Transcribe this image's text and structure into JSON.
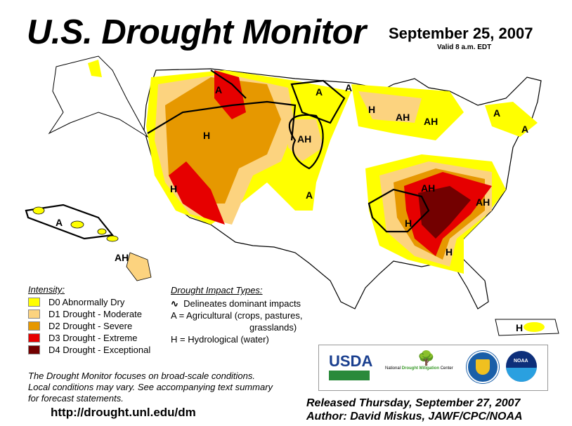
{
  "header": {
    "title": "U.S. Drought Monitor",
    "date": "September 25, 2007",
    "valid": "Valid 8 a.m. EDT"
  },
  "colors": {
    "D0": "#ffff00",
    "D1": "#fcd37f",
    "D2": "#e69800",
    "D3": "#e60000",
    "D4": "#730000"
  },
  "legend": {
    "intensity_title": "Intensity:",
    "items": [
      {
        "code": "D0",
        "label": "D0 Abnormally Dry",
        "color": "#ffff00"
      },
      {
        "code": "D1",
        "label": "D1 Drought - Moderate",
        "color": "#fcd37f"
      },
      {
        "code": "D2",
        "label": "D2 Drought - Severe",
        "color": "#e69800"
      },
      {
        "code": "D3",
        "label": "D3 Drought - Extreme",
        "color": "#e60000"
      },
      {
        "code": "D4",
        "label": "D4 Drought - Exceptional",
        "color": "#730000"
      }
    ],
    "impact_title": "Drought Impact Types:",
    "impact_line": "Delineates dominant impacts",
    "impact_a1": "A = Agricultural (crops, pastures,",
    "impact_a2": "grasslands)",
    "impact_h": "H = Hydrological (water)"
  },
  "map_labels": [
    "A",
    "A",
    "A",
    "H",
    "AH",
    "AH",
    "A",
    "A",
    "H",
    "AH",
    "H",
    "A",
    "AH",
    "AH",
    "H",
    "H",
    "A",
    "AH",
    "H"
  ],
  "footer": {
    "note1": "The Drought Monitor focuses on broad-scale conditions.",
    "note2": "Local conditions may vary.  See accompanying text summary",
    "note3": "for forecast statements.",
    "url": "http://drought.unl.edu/dm",
    "released": "Released Thursday, September 27, 2007",
    "author": "Author:  David Miskus, JAWF/CPC/NOAA"
  },
  "logos": {
    "usda": "USDA",
    "ndmc_1": "National",
    "ndmc_2": "Drought Mitigation",
    "ndmc_3": "Center",
    "noaa": "NOAA"
  }
}
